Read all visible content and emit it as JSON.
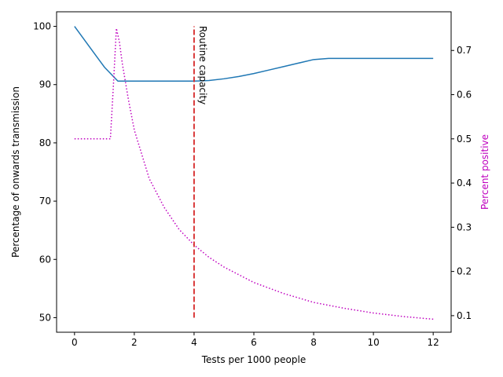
{
  "chart_data": {
    "type": "line",
    "xlabel": "Tests per 1000 people",
    "ylabel_left": "Percentage of onwards transmission",
    "ylabel_right": "Percent positive",
    "xlim": [
      -0.6,
      12.6
    ],
    "ylim_left": [
      47.5,
      102.5
    ],
    "ylim_right": [
      0.0625,
      0.7875
    ],
    "x_ticks": [
      0,
      2,
      4,
      6,
      8,
      10,
      12
    ],
    "x_tick_labels": [
      "0",
      "2",
      "4",
      "6",
      "8",
      "10",
      "12"
    ],
    "y_left_ticks": [
      50,
      60,
      70,
      80,
      90,
      100
    ],
    "y_left_tick_labels": [
      "50",
      "60",
      "70",
      "80",
      "90",
      "100"
    ],
    "y_right_ticks": [
      0.1,
      0.2,
      0.3,
      0.4,
      0.5,
      0.6,
      0.7
    ],
    "y_right_tick_labels": [
      "0.1",
      "0.2",
      "0.3",
      "0.4",
      "0.5",
      "0.6",
      "0.7"
    ],
    "grid": false,
    "series": [
      {
        "axis": "left",
        "style": "solid",
        "color": "#1f77b4",
        "x": [
          0,
          0.5,
          1.0,
          1.45,
          2.0,
          3.0,
          4.0,
          4.5,
          5.0,
          5.5,
          6.0,
          6.5,
          7.0,
          7.5,
          8.0,
          8.5,
          9.0,
          10.0,
          11.0,
          12.0
        ],
        "values": [
          100,
          96.5,
          93.0,
          90.6,
          90.6,
          90.6,
          90.6,
          90.7,
          91.0,
          91.4,
          91.9,
          92.5,
          93.1,
          93.7,
          94.3,
          94.5,
          94.5,
          94.5,
          94.5,
          94.5
        ]
      },
      {
        "axis": "right",
        "style": "dotted",
        "color": "#bf00bf",
        "x": [
          0,
          0.5,
          1.0,
          1.2,
          1.3,
          1.4,
          1.5,
          1.6,
          1.8,
          2.0,
          2.5,
          3.0,
          3.5,
          4.0,
          4.5,
          5.0,
          6.0,
          7.0,
          8.0,
          9.0,
          10.0,
          11.0,
          12.0
        ],
        "values": [
          0.5,
          0.5,
          0.5,
          0.5,
          0.62,
          0.75,
          0.72,
          0.67,
          0.59,
          0.52,
          0.41,
          0.345,
          0.295,
          0.26,
          0.232,
          0.21,
          0.175,
          0.15,
          0.13,
          0.117,
          0.106,
          0.098,
          0.092
        ]
      }
    ],
    "vline": {
      "x": 4,
      "y_range": [
        50,
        100
      ],
      "style": "dashed",
      "color": "#d62728",
      "label": "Routine capacity"
    },
    "colors": {
      "left_axis_label": "#000000",
      "right_axis_label": "#bf00bf"
    }
  }
}
